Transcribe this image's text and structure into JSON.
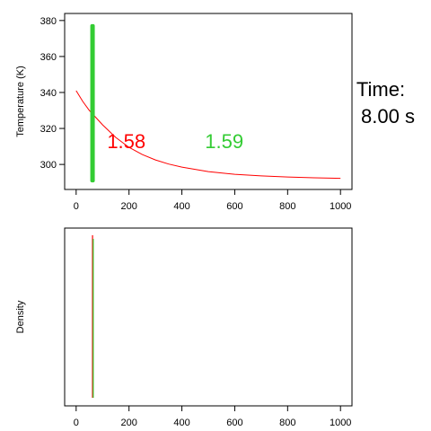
{
  "time_label": {
    "line1": "Time:",
    "line2": "8.00 s"
  },
  "colors": {
    "red": "#ff0000",
    "green": "#33cc33",
    "axis": "#000000"
  },
  "chart_data": [
    {
      "type": "line",
      "ylabel": "Temperature (K)",
      "xlim": [
        0,
        1000
      ],
      "ylim": [
        290,
        380
      ],
      "x_ticks": [
        0,
        200,
        400,
        600,
        800,
        1000
      ],
      "y_ticks": [
        300,
        320,
        340,
        360,
        380
      ],
      "series": [
        {
          "color": "red",
          "x": [
            0,
            25,
            50,
            75,
            100,
            150,
            200,
            250,
            300,
            350,
            400,
            500,
            600,
            700,
            800,
            900,
            1000
          ],
          "y": [
            341,
            335,
            330,
            326,
            322,
            315,
            309.5,
            305.5,
            302.5,
            300.2,
            298.5,
            296,
            294.5,
            293.6,
            293,
            292.6,
            292.3
          ]
        }
      ],
      "vertical_marker": {
        "color": "green",
        "x": 62,
        "y_from": 290,
        "y_to": 378
      },
      "annotations": [
        {
          "text": "1.58",
          "color": "red",
          "x": 190,
          "y": 309
        },
        {
          "text": "1.59",
          "color": "green",
          "x": 560,
          "y": 309
        }
      ]
    },
    {
      "type": "line",
      "ylabel": "Density",
      "xlim": [
        0,
        1000
      ],
      "x_ticks": [
        0,
        200,
        400,
        600,
        800,
        1000
      ],
      "vertical_marker": {
        "colors": [
          "red",
          "green"
        ],
        "x": 62
      }
    }
  ]
}
